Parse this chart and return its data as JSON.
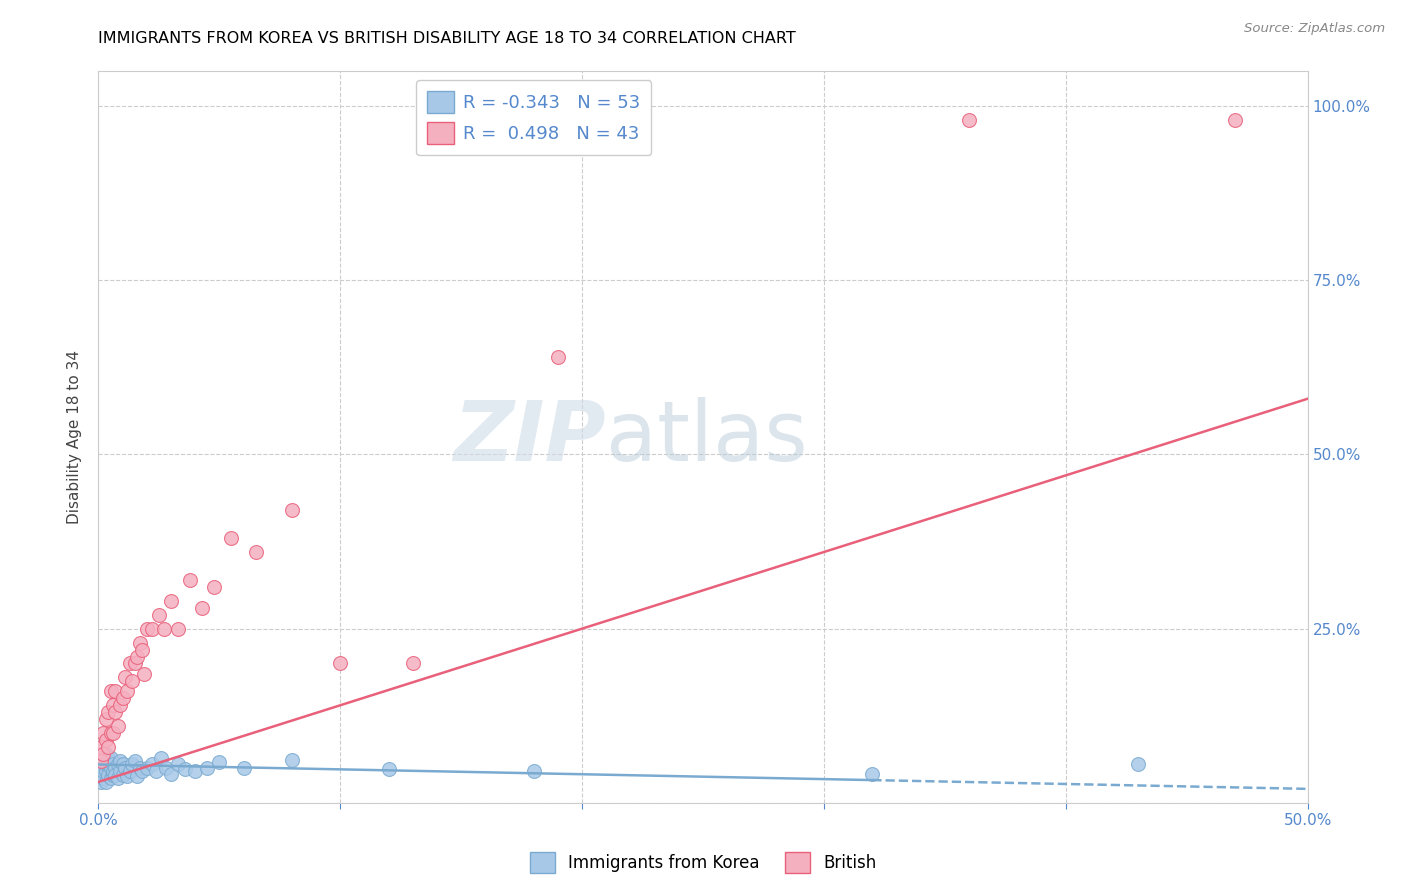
{
  "title": "IMMIGRANTS FROM KOREA VS BRITISH DISABILITY AGE 18 TO 34 CORRELATION CHART",
  "source": "Source: ZipAtlas.com",
  "ylabel": "Disability Age 18 to 34",
  "xlim": [
    0.0,
    0.5
  ],
  "ylim": [
    0.0,
    1.05
  ],
  "legend_blue_r": "-0.343",
  "legend_blue_n": "53",
  "legend_pink_r": "0.498",
  "legend_pink_n": "43",
  "watermark_zip": "ZIP",
  "watermark_atlas": "atlas",
  "blue_color": "#a8c8e8",
  "pink_color": "#f5b0c0",
  "blue_line_color": "#7aaad0",
  "pink_line_color": "#e8607a",
  "blue_scatter_x": [
    0.001,
    0.001,
    0.001,
    0.002,
    0.002,
    0.002,
    0.002,
    0.003,
    0.003,
    0.003,
    0.003,
    0.004,
    0.004,
    0.004,
    0.005,
    0.005,
    0.005,
    0.006,
    0.006,
    0.006,
    0.007,
    0.007,
    0.008,
    0.008,
    0.009,
    0.009,
    0.01,
    0.01,
    0.011,
    0.012,
    0.013,
    0.014,
    0.015,
    0.016,
    0.017,
    0.018,
    0.02,
    0.022,
    0.024,
    0.026,
    0.028,
    0.03,
    0.033,
    0.036,
    0.04,
    0.045,
    0.05,
    0.06,
    0.08,
    0.12,
    0.18,
    0.32,
    0.43
  ],
  "blue_scatter_y": [
    0.04,
    0.03,
    0.055,
    0.035,
    0.05,
    0.045,
    0.06,
    0.03,
    0.045,
    0.055,
    0.07,
    0.04,
    0.055,
    0.065,
    0.035,
    0.05,
    0.065,
    0.04,
    0.055,
    0.045,
    0.05,
    0.04,
    0.055,
    0.035,
    0.045,
    0.06,
    0.04,
    0.055,
    0.05,
    0.038,
    0.045,
    0.055,
    0.06,
    0.038,
    0.05,
    0.045,
    0.05,
    0.055,
    0.045,
    0.065,
    0.05,
    0.042,
    0.055,
    0.048,
    0.045,
    0.05,
    0.058,
    0.05,
    0.062,
    0.048,
    0.045,
    0.042,
    0.055
  ],
  "pink_scatter_x": [
    0.001,
    0.001,
    0.002,
    0.002,
    0.003,
    0.003,
    0.004,
    0.004,
    0.005,
    0.005,
    0.006,
    0.006,
    0.007,
    0.007,
    0.008,
    0.009,
    0.01,
    0.011,
    0.012,
    0.013,
    0.014,
    0.015,
    0.016,
    0.017,
    0.018,
    0.019,
    0.02,
    0.022,
    0.025,
    0.027,
    0.03,
    0.033,
    0.038,
    0.043,
    0.048,
    0.055,
    0.065,
    0.08,
    0.1,
    0.13,
    0.19,
    0.36,
    0.47
  ],
  "pink_scatter_y": [
    0.06,
    0.08,
    0.07,
    0.1,
    0.09,
    0.12,
    0.08,
    0.13,
    0.1,
    0.16,
    0.14,
    0.1,
    0.13,
    0.16,
    0.11,
    0.14,
    0.15,
    0.18,
    0.16,
    0.2,
    0.175,
    0.2,
    0.21,
    0.23,
    0.22,
    0.185,
    0.25,
    0.25,
    0.27,
    0.25,
    0.29,
    0.25,
    0.32,
    0.28,
    0.31,
    0.38,
    0.36,
    0.42,
    0.2,
    0.2,
    0.64,
    0.98,
    0.98
  ],
  "blue_trend_x": [
    0.0,
    0.5
  ],
  "blue_trend_y": [
    0.055,
    0.02
  ],
  "blue_trend_solid_end": 0.32,
  "pink_trend_x": [
    0.0,
    0.5
  ],
  "pink_trend_y": [
    0.03,
    0.58
  ],
  "bottom_legend": [
    {
      "label": "Immigrants from Korea",
      "color": "#a8c8e8",
      "edge": "#7aaad0"
    },
    {
      "label": "British",
      "color": "#f5b0c0",
      "edge": "#e8607a"
    }
  ]
}
